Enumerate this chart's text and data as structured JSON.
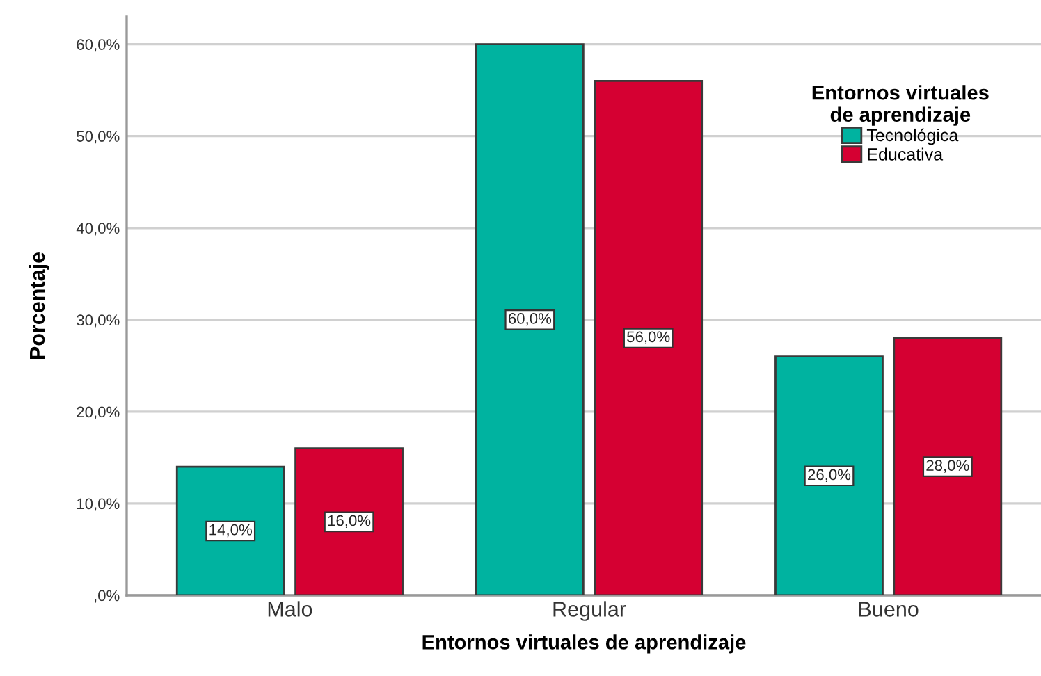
{
  "chart_data": {
    "type": "bar",
    "xlabel": "Entornos virtuales de aprendizaje",
    "ylabel": "Porcentaje",
    "categories": [
      "Malo",
      "Regular",
      "Bueno"
    ],
    "series": [
      {
        "name": "Tecnológica",
        "color": "#00b3a0",
        "values": [
          14,
          60,
          26
        ],
        "value_labels": [
          "14,0%",
          "60,0%",
          "26,0%"
        ]
      },
      {
        "name": "Educativa",
        "color": "#d50032",
        "values": [
          16,
          56,
          28
        ],
        "value_labels": [
          "16,0%",
          "56,0%",
          "28,0%"
        ]
      }
    ],
    "ylim": [
      0,
      63
    ],
    "yticks": [
      {
        "value": 0,
        "label": ",0%"
      },
      {
        "value": 10,
        "label": "10,0%"
      },
      {
        "value": 20,
        "label": "20,0%"
      },
      {
        "value": 30,
        "label": "30,0%"
      },
      {
        "value": 40,
        "label": "40,0%"
      },
      {
        "value": 50,
        "label": "50,0%"
      },
      {
        "value": 60,
        "label": "60,0%"
      }
    ],
    "grid": "y",
    "legend": "top right",
    "legend_title": "Entornos virtuales\nde aprendizaje"
  }
}
